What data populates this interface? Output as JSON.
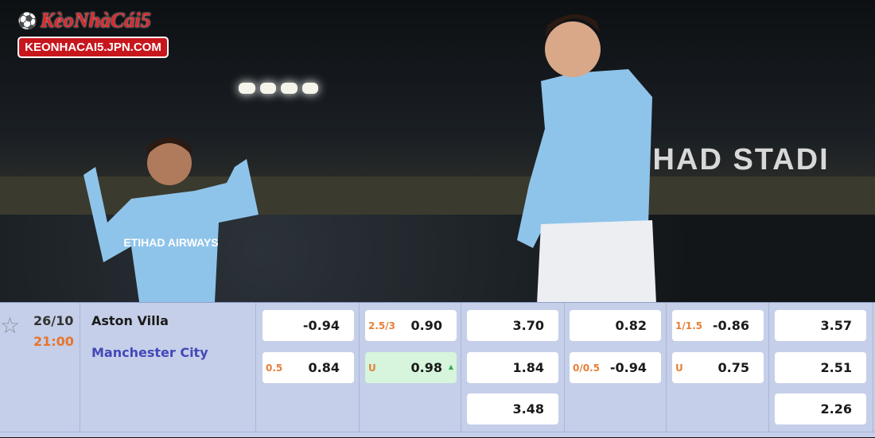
{
  "logo": {
    "title": "KèoNhàCái5",
    "url": "KEONHACAI5.JPN.COM"
  },
  "photo": {
    "stadium_sign": "IHAD STADI",
    "shirt_sponsor": "ETIHAD AIRWAYS"
  },
  "match": {
    "date": "26/10",
    "time": "21:00",
    "home": "Aston Villa",
    "away": "Manchester City",
    "icons": {
      "favorite": "star-outline-icon",
      "odds_up": "triangle-up-icon"
    },
    "colors": {
      "time": "#e8742c",
      "away": "#4448b8",
      "handicap": "#e5803a",
      "highlight": "#d6f5dc"
    },
    "odds": [
      [
        {
          "hcap": "",
          "val": "-0.94"
        },
        {
          "hcap": "0.5",
          "val": "0.84"
        }
      ],
      [
        {
          "hcap": "2.5/3",
          "val": "0.90"
        },
        {
          "hcap": "U",
          "val": "0.98",
          "highlight": true,
          "trend": "up"
        }
      ],
      [
        {
          "hcap": "",
          "val": "3.70"
        },
        {
          "hcap": "",
          "val": "1.84"
        },
        {
          "hcap": "",
          "val": "3.48"
        }
      ],
      [
        {
          "hcap": "",
          "val": "0.82"
        },
        {
          "hcap": "0/0.5",
          "val": "-0.94"
        }
      ],
      [
        {
          "hcap": "1/1.5",
          "val": "-0.86"
        },
        {
          "hcap": "U",
          "val": "0.75"
        }
      ],
      [
        {
          "hcap": "",
          "val": "3.57"
        },
        {
          "hcap": "",
          "val": "2.51"
        },
        {
          "hcap": "",
          "val": "2.26"
        }
      ]
    ]
  }
}
